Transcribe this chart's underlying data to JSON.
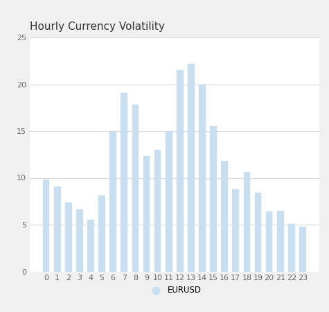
{
  "title": "Hourly Currency Volatility",
  "hours": [
    0,
    1,
    2,
    3,
    4,
    5,
    6,
    7,
    8,
    9,
    10,
    11,
    12,
    13,
    14,
    15,
    16,
    17,
    18,
    19,
    20,
    21,
    22,
    23
  ],
  "values": [
    9.8,
    9.1,
    7.4,
    6.6,
    5.5,
    8.1,
    15.0,
    19.1,
    17.8,
    12.3,
    13.0,
    15.0,
    21.5,
    22.2,
    20.0,
    15.5,
    11.8,
    8.8,
    10.6,
    8.4,
    6.4,
    6.5,
    5.1,
    4.8
  ],
  "bar_color": "#c9dff0",
  "bar_edge_color": "#c9dff0",
  "ylim": [
    0,
    25
  ],
  "yticks": [
    0,
    5,
    10,
    15,
    20,
    25
  ],
  "background_color": "#f0f0f0",
  "plot_bg_color": "#ffffff",
  "grid_color": "#d8d8d8",
  "title_fontsize": 11,
  "tick_fontsize": 8,
  "legend_label": "EURUSD",
  "legend_color": "#c9dff0",
  "title_color": "#333333",
  "tick_color": "#666666"
}
